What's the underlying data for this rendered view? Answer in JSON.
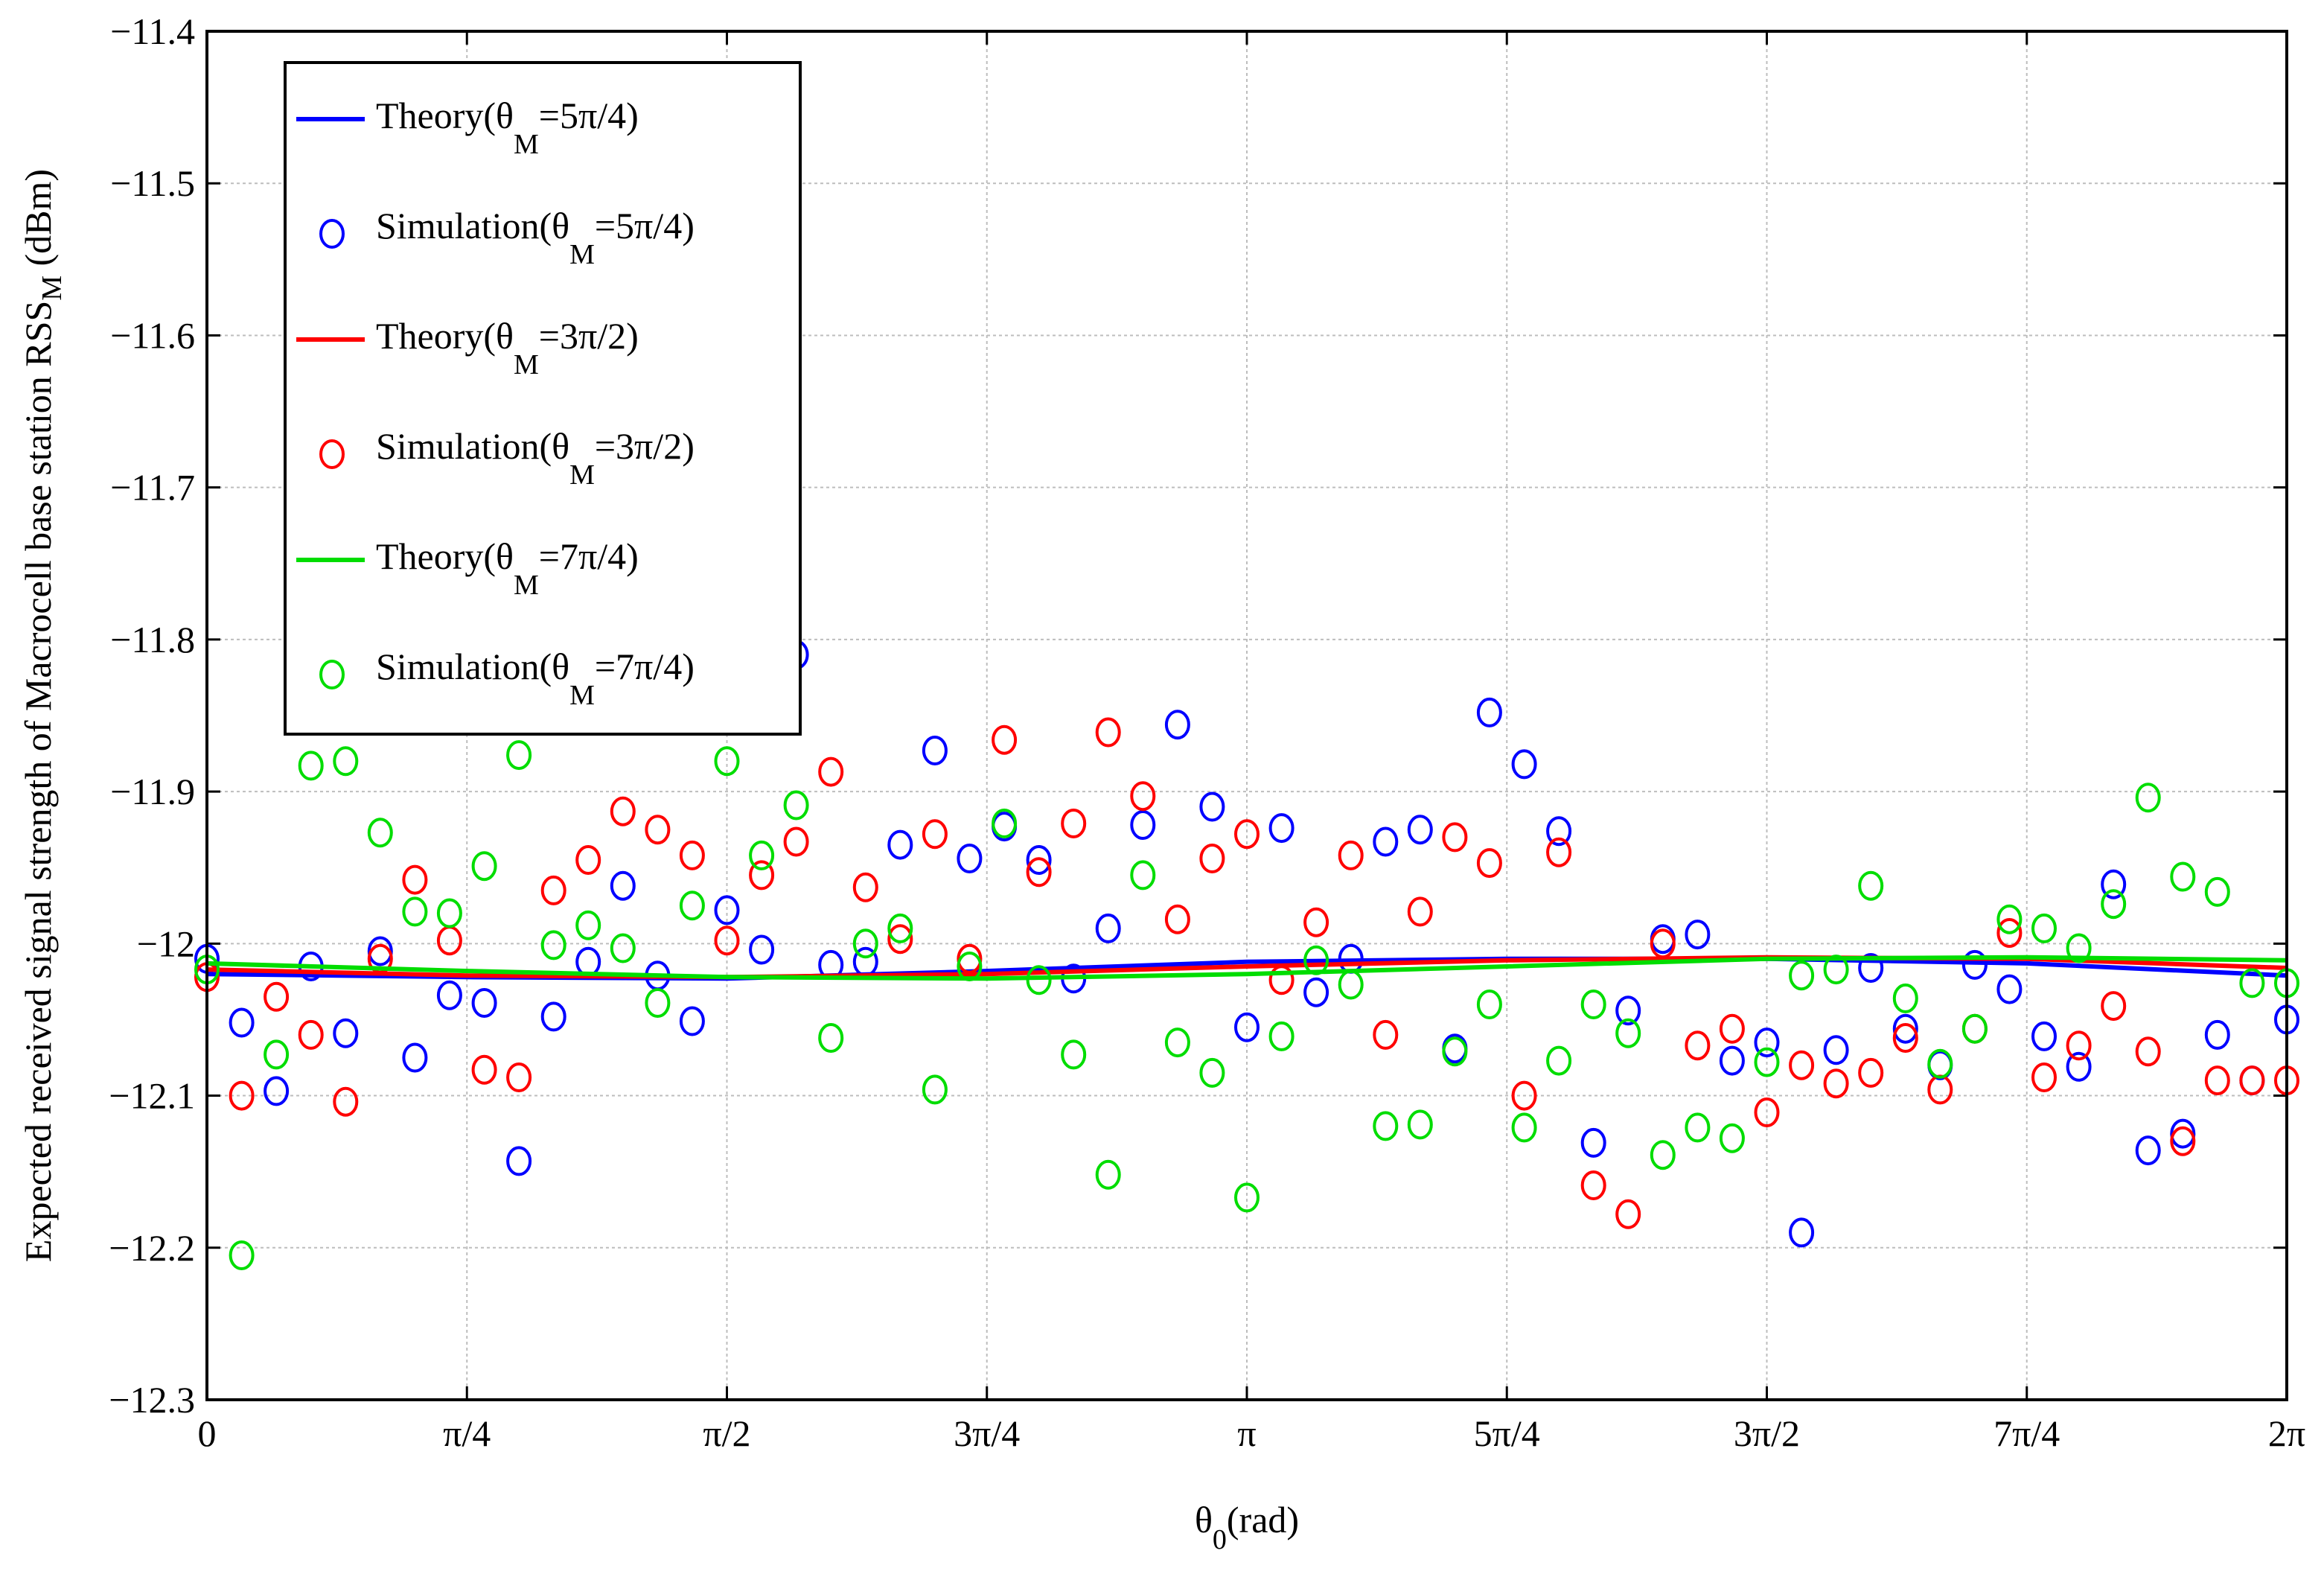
{
  "chart_data": {
    "type": "scatter",
    "title": "",
    "xlabel_main": "θ",
    "xlabel_sub": "0",
    "xlabel_unit": "(rad)",
    "ylabel_main": "Expected received signal strength of Macrocell base station RSS",
    "ylabel_sub": "M",
    "ylabel_unit": " (dBm)",
    "xlim": [
      0,
      6.2832
    ],
    "ylim": [
      -12.3,
      -11.4
    ],
    "grid": true,
    "legend_position": "top-left",
    "x_ticks": [
      {
        "value": 0,
        "label": "0"
      },
      {
        "value": 0.7854,
        "label": "π/4"
      },
      {
        "value": 1.5708,
        "label": "π/2"
      },
      {
        "value": 2.3562,
        "label": "3π/4"
      },
      {
        "value": 3.1416,
        "label": "π"
      },
      {
        "value": 3.927,
        "label": "5π/4"
      },
      {
        "value": 4.7124,
        "label": "3π/2"
      },
      {
        "value": 5.4978,
        "label": "7π/4"
      },
      {
        "value": 6.2832,
        "label": "2π"
      }
    ],
    "y_ticks": [
      {
        "value": -12.3,
        "label": "−12.3"
      },
      {
        "value": -12.2,
        "label": "−12.2"
      },
      {
        "value": -12.1,
        "label": "−12.1"
      },
      {
        "value": -12.0,
        "label": "−12"
      },
      {
        "value": -11.9,
        "label": "−11.9"
      },
      {
        "value": -11.8,
        "label": "−11.8"
      },
      {
        "value": -11.7,
        "label": "−11.7"
      },
      {
        "value": -11.6,
        "label": "−11.6"
      },
      {
        "value": -11.5,
        "label": "−11.5"
      },
      {
        "value": -11.4,
        "label": "−11.4"
      }
    ],
    "series": [
      {
        "name": "Theory(θM=5π/4)",
        "legend_main": "Theory(θ",
        "legend_sub": "M",
        "legend_tail": "=5π/4)",
        "kind": "line",
        "color": "#0000ff",
        "x": [
          0,
          0.7854,
          1.5708,
          2.3562,
          3.1416,
          3.927,
          4.7124,
          5.4978,
          6.2832
        ],
        "y": [
          -12.02,
          -12.022,
          -12.023,
          -12.018,
          -12.012,
          -12.01,
          -12.01,
          -12.013,
          -12.021
        ]
      },
      {
        "name": "Simulation(θM=5π/4)",
        "legend_main": "Simulation(θ",
        "legend_sub": "M",
        "legend_tail": "=5π/4)",
        "kind": "marker",
        "color": "#0000ff",
        "x": [
          0.0,
          0.1047,
          0.2094,
          0.3142,
          0.4189,
          0.5236,
          0.6283,
          0.733,
          0.8378,
          0.9425,
          1.0472,
          1.1519,
          1.2566,
          1.3614,
          1.4661,
          1.5708,
          1.6755,
          1.7802,
          1.885,
          1.9897,
          2.0944,
          2.1991,
          2.3038,
          2.4086,
          2.5133,
          2.618,
          2.7227,
          2.8274,
          2.9322,
          3.0369,
          3.1416,
          3.2463,
          3.351,
          3.4558,
          3.5605,
          3.6652,
          3.7699,
          3.8746,
          3.9794,
          4.0841,
          4.1888,
          4.2935,
          4.3982,
          4.503,
          4.6077,
          4.7124,
          4.8171,
          4.9218,
          5.0265,
          5.1313,
          5.236,
          5.3407,
          5.4454,
          5.5501,
          5.6549,
          5.7596,
          5.8643,
          5.969,
          6.0737,
          6.1785,
          6.2832
        ],
        "y": [
          -12.01,
          -12.052,
          -12.097,
          -12.015,
          -12.059,
          -12.005,
          -12.075,
          -12.034,
          -12.039,
          -12.143,
          -12.048,
          -12.012,
          -11.962,
          -12.021,
          -12.051,
          -11.978,
          -12.004,
          -11.81,
          -12.014,
          -12.012,
          -11.935,
          -11.873,
          -11.944,
          -11.923,
          -11.945,
          -12.023,
          -11.99,
          -11.922,
          -11.856,
          -11.91,
          -12.055,
          -11.924,
          -12.032,
          -12.01,
          -11.933,
          -11.925,
          -12.069,
          -11.848,
          -11.882,
          -11.926,
          -12.131,
          -12.044,
          -11.997,
          -11.994,
          -12.077,
          -12.065,
          -12.19,
          -12.07,
          -12.016,
          -12.056,
          -12.08,
          -12.014,
          -12.03,
          -12.061,
          -12.081,
          -11.961,
          -12.136,
          -12.125,
          -12.06,
          -12.09,
          -12.05
        ]
      },
      {
        "name": "Theory(θM=3π/2)",
        "legend_main": "Theory(θ",
        "legend_sub": "M",
        "legend_tail": "=3π/2)",
        "kind": "line",
        "color": "#ff0000",
        "x": [
          0,
          0.7854,
          1.5708,
          2.3562,
          3.1416,
          3.927,
          4.7124,
          5.4978,
          6.2832
        ],
        "y": [
          -12.017,
          -12.021,
          -12.022,
          -12.02,
          -12.015,
          -12.011,
          -12.009,
          -12.01,
          -12.016
        ]
      },
      {
        "name": "Simulation(θM=3π/2)",
        "legend_main": "Simulation(θ",
        "legend_sub": "M",
        "legend_tail": "=3π/2)",
        "kind": "marker",
        "color": "#ff0000",
        "x": [
          0.0,
          0.1047,
          0.2094,
          0.3142,
          0.4189,
          0.5236,
          0.6283,
          0.733,
          0.8378,
          0.9425,
          1.0472,
          1.1519,
          1.2566,
          1.3614,
          1.4661,
          1.5708,
          1.6755,
          1.7802,
          1.885,
          1.9897,
          2.0944,
          2.1991,
          2.3038,
          2.4086,
          2.5133,
          2.618,
          2.7227,
          2.8274,
          2.9322,
          3.0369,
          3.1416,
          3.2463,
          3.351,
          3.4558,
          3.5605,
          3.6652,
          3.7699,
          3.8746,
          3.9794,
          4.0841,
          4.1888,
          4.2935,
          4.3982,
          4.503,
          4.6077,
          4.7124,
          4.8171,
          4.9218,
          5.0265,
          5.1313,
          5.236,
          5.3407,
          5.4454,
          5.5501,
          5.6549,
          5.7596,
          5.8643,
          5.969,
          6.0737,
          6.1785,
          6.2832
        ],
        "y": [
          -12.022,
          -12.1,
          -12.035,
          -12.06,
          -12.104,
          -12.01,
          -11.958,
          -11.998,
          -12.083,
          -12.088,
          -11.965,
          -11.945,
          -11.913,
          -11.925,
          -11.942,
          -11.998,
          -11.955,
          -11.933,
          -11.887,
          -11.963,
          -11.997,
          -11.928,
          -12.01,
          -11.866,
          -11.953,
          -11.921,
          -11.861,
          -11.903,
          -11.984,
          -11.944,
          -11.928,
          -12.024,
          -11.986,
          -11.942,
          -12.06,
          -11.979,
          -11.93,
          -11.947,
          -12.1,
          -11.94,
          -12.159,
          -12.178,
          -12.0,
          -12.067,
          -12.056,
          -12.111,
          -12.08,
          -12.092,
          -12.085,
          -12.062,
          -12.096,
          -12.056,
          -11.993,
          -12.088,
          -12.067,
          -12.041,
          -12.071,
          -12.13,
          -12.09,
          -12.09,
          -12.09
        ]
      },
      {
        "name": "Theory(θM=7π/4)",
        "legend_main": "Theory(θ",
        "legend_sub": "M",
        "legend_tail": "=7π/4)",
        "kind": "line",
        "color": "#00dd00",
        "x": [
          0,
          0.7854,
          1.5708,
          2.3562,
          3.1416,
          3.927,
          4.7124,
          5.4978,
          6.2832
        ],
        "y": [
          -12.013,
          -12.018,
          -12.022,
          -12.023,
          -12.02,
          -12.015,
          -12.01,
          -12.009,
          -12.011
        ]
      },
      {
        "name": "Simulation(θM=7π/4)",
        "legend_main": "Simulation(θ",
        "legend_sub": "M",
        "legend_tail": "=7π/4)",
        "kind": "marker",
        "color": "#00dd00",
        "x": [
          0.0,
          0.1047,
          0.2094,
          0.3142,
          0.4189,
          0.5236,
          0.6283,
          0.733,
          0.8378,
          0.9425,
          1.0472,
          1.1519,
          1.2566,
          1.3614,
          1.4661,
          1.5708,
          1.6755,
          1.7802,
          1.885,
          1.9897,
          2.0944,
          2.1991,
          2.3038,
          2.4086,
          2.5133,
          2.618,
          2.7227,
          2.8274,
          2.9322,
          3.0369,
          3.1416,
          3.2463,
          3.351,
          3.4558,
          3.5605,
          3.6652,
          3.7699,
          3.8746,
          3.9794,
          4.0841,
          4.1888,
          4.2935,
          4.3982,
          4.503,
          4.6077,
          4.7124,
          4.8171,
          4.9218,
          5.0265,
          5.1313,
          5.236,
          5.3407,
          5.4454,
          5.5501,
          5.6549,
          5.7596,
          5.8643,
          5.969,
          6.0737,
          6.1785,
          6.2832
        ],
        "y": [
          -12.017,
          -12.205,
          -12.073,
          -11.883,
          -11.88,
          -11.927,
          -11.979,
          -11.98,
          -11.949,
          -11.876,
          -12.001,
          -11.988,
          -12.003,
          -12.039,
          -11.975,
          -11.88,
          -11.942,
          -11.909,
          -12.062,
          -12.0,
          -11.99,
          -12.096,
          -12.015,
          -11.921,
          -12.024,
          -12.073,
          -12.152,
          -11.955,
          -12.065,
          -12.085,
          -12.167,
          -12.061,
          -12.011,
          -12.027,
          -12.12,
          -12.119,
          -12.071,
          -12.04,
          -12.121,
          -12.077,
          -12.04,
          -12.059,
          -12.139,
          -12.121,
          -12.128,
          -12.078,
          -12.021,
          -12.017,
          -11.962,
          -12.036,
          -12.079,
          -12.056,
          -11.984,
          -11.99,
          -12.003,
          -11.974,
          -11.904,
          -11.956,
          -11.966,
          -12.026,
          -12.026
        ]
      }
    ]
  }
}
